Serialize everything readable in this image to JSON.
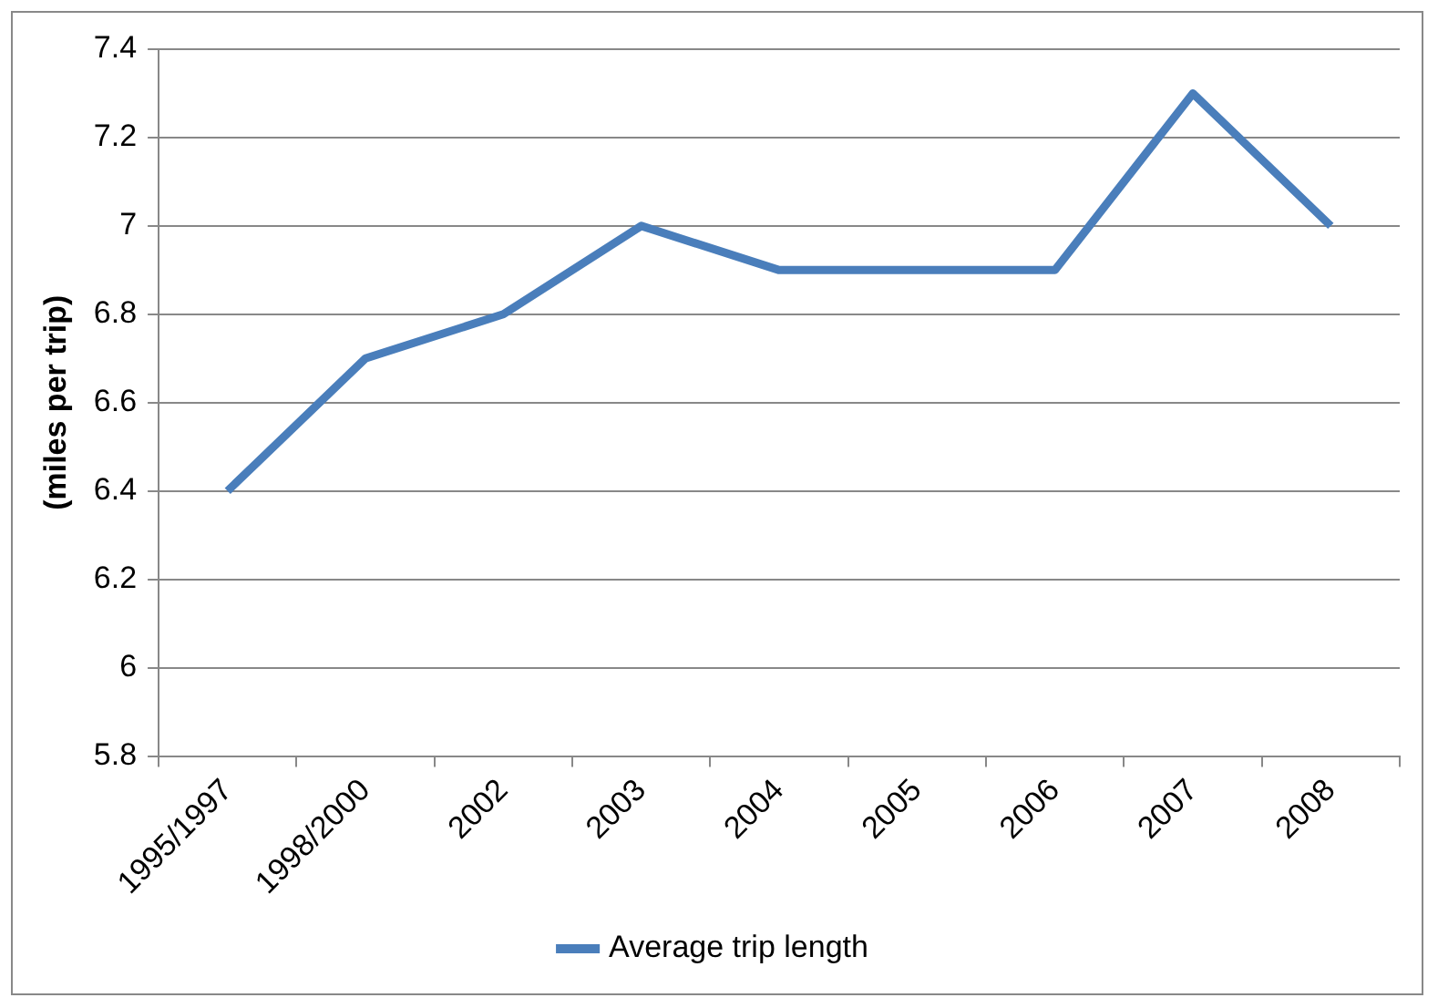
{
  "chart_data": {
    "type": "line",
    "ylabel": "(miles per trip)",
    "categories": [
      "1995/1997",
      "1998/2000",
      "2002",
      "2003",
      "2004",
      "2005",
      "2006",
      "2007",
      "2008"
    ],
    "series": [
      {
        "name": "Average trip length",
        "color": "#4a7ebb",
        "values": [
          6.4,
          6.7,
          6.8,
          7.0,
          6.9,
          6.9,
          6.9,
          7.3,
          7.0
        ]
      }
    ],
    "ylim": [
      5.8,
      7.4
    ],
    "yticks": [
      5.8,
      6,
      6.2,
      6.4,
      6.6,
      6.8,
      7,
      7.2,
      7.4
    ],
    "grid": "y",
    "legend": "bottom",
    "marker": "none",
    "line_style": "solid"
  }
}
